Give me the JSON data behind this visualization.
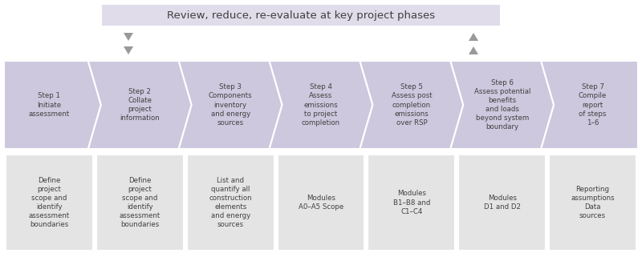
{
  "title": "Review, reduce, re-evaluate at key project phases",
  "title_box_color": "#e0dcea",
  "title_text_color": "#404040",
  "bg_color": "#ffffff",
  "step_box_color": "#cdc8de",
  "bottom_box_color": "#e4e4e4",
  "arrow_color": "#999999",
  "steps": [
    {
      "top": "Step 1\nInitiate\nassessment",
      "bottom": "Define\nproject\nscope and\nidentify\nassessment\nboundaries"
    },
    {
      "top": "Step 2\nCollate\nproject\ninformation",
      "bottom": "Define\nproject\nscope and\nidentify\nassessment\nboundaries"
    },
    {
      "top": "Step 3\nComponents\ninventory\nand energy\nsources",
      "bottom": "List and\nquantify all\nconstruction\nelements\nand energy\nsources"
    },
    {
      "top": "Step 4\nAssess\nemissions\nto project\ncompletion",
      "bottom": "Modules\nA0–A5 Scope"
    },
    {
      "top": "Step 5\nAssess post\ncompletion\nemissions\nover RSP",
      "bottom": "Modules\nB1–B8 and\nC1–C4"
    },
    {
      "top": "Step 6\nAssess potential\nbenefits\nand loads\nbeyond system\nboundary",
      "bottom": "Modules\nD1 and D2"
    },
    {
      "top": "Step 7\nCompile\nreport\nof steps\n1–6",
      "bottom": "Reporting\nassumptions\nData\nsources"
    }
  ],
  "n_steps": 7
}
